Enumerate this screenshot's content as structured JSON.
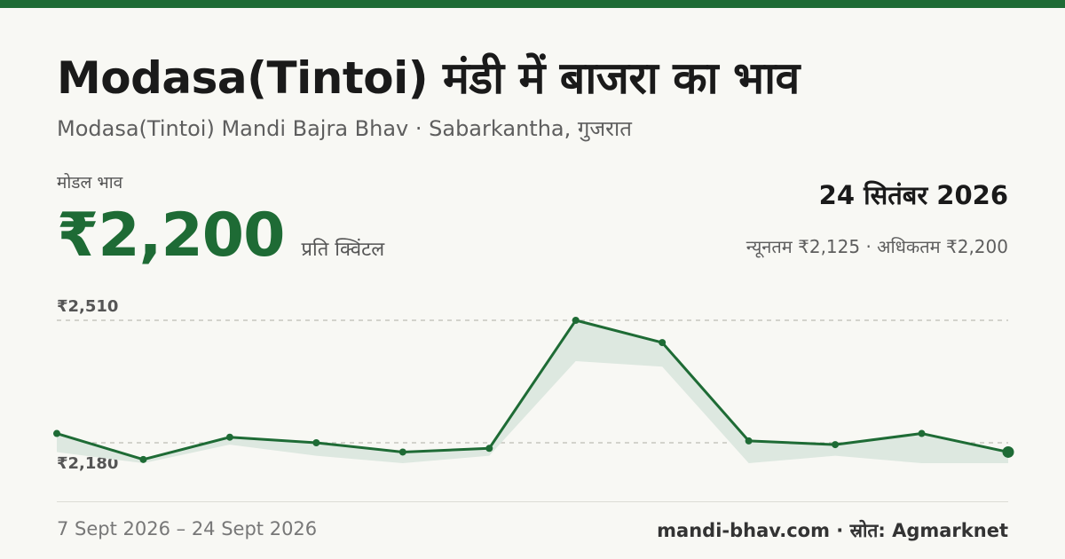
{
  "header": {
    "title": "Modasa(Tintoi) मंडी में बाजरा का भाव",
    "subtitle": "Modasa(Tintoi) Mandi Bajra Bhav · Sabarkantha, गुजरात"
  },
  "price": {
    "label": "मोडल भाव",
    "value": "₹2,200",
    "unit": "प्रति क्विंटल"
  },
  "summary": {
    "date": "24 सितंबर 2026",
    "minmax": "न्यूनतम ₹2,125 · अधिकतम ₹2,200"
  },
  "footer": {
    "range": "7 Sept 2026 – 24 Sept 2026",
    "source": "mandi-bhav.com · स्रोत: Agmarknet"
  },
  "colors": {
    "accent": "#1e6b35",
    "band": "#dde8e0"
  },
  "chart_data": {
    "type": "line",
    "ref_labels": [
      "₹2,510",
      "₹2,180"
    ],
    "ref_values": [
      2510,
      2180
    ],
    "series": [
      {
        "values": [
          2205,
          2135,
          2195,
          2180,
          2155,
          2165,
          2510,
          2450,
          2185,
          2175,
          2205,
          2155
        ]
      }
    ],
    "band": {
      "upper": [
        2205,
        2135,
        2195,
        2180,
        2155,
        2165,
        2510,
        2450,
        2185,
        2175,
        2205,
        2155
      ],
      "lower": [
        2155,
        2125,
        2175,
        2145,
        2125,
        2145,
        2400,
        2385,
        2125,
        2145,
        2125,
        2125
      ]
    },
    "ylim": [
      2100,
      2530
    ]
  }
}
